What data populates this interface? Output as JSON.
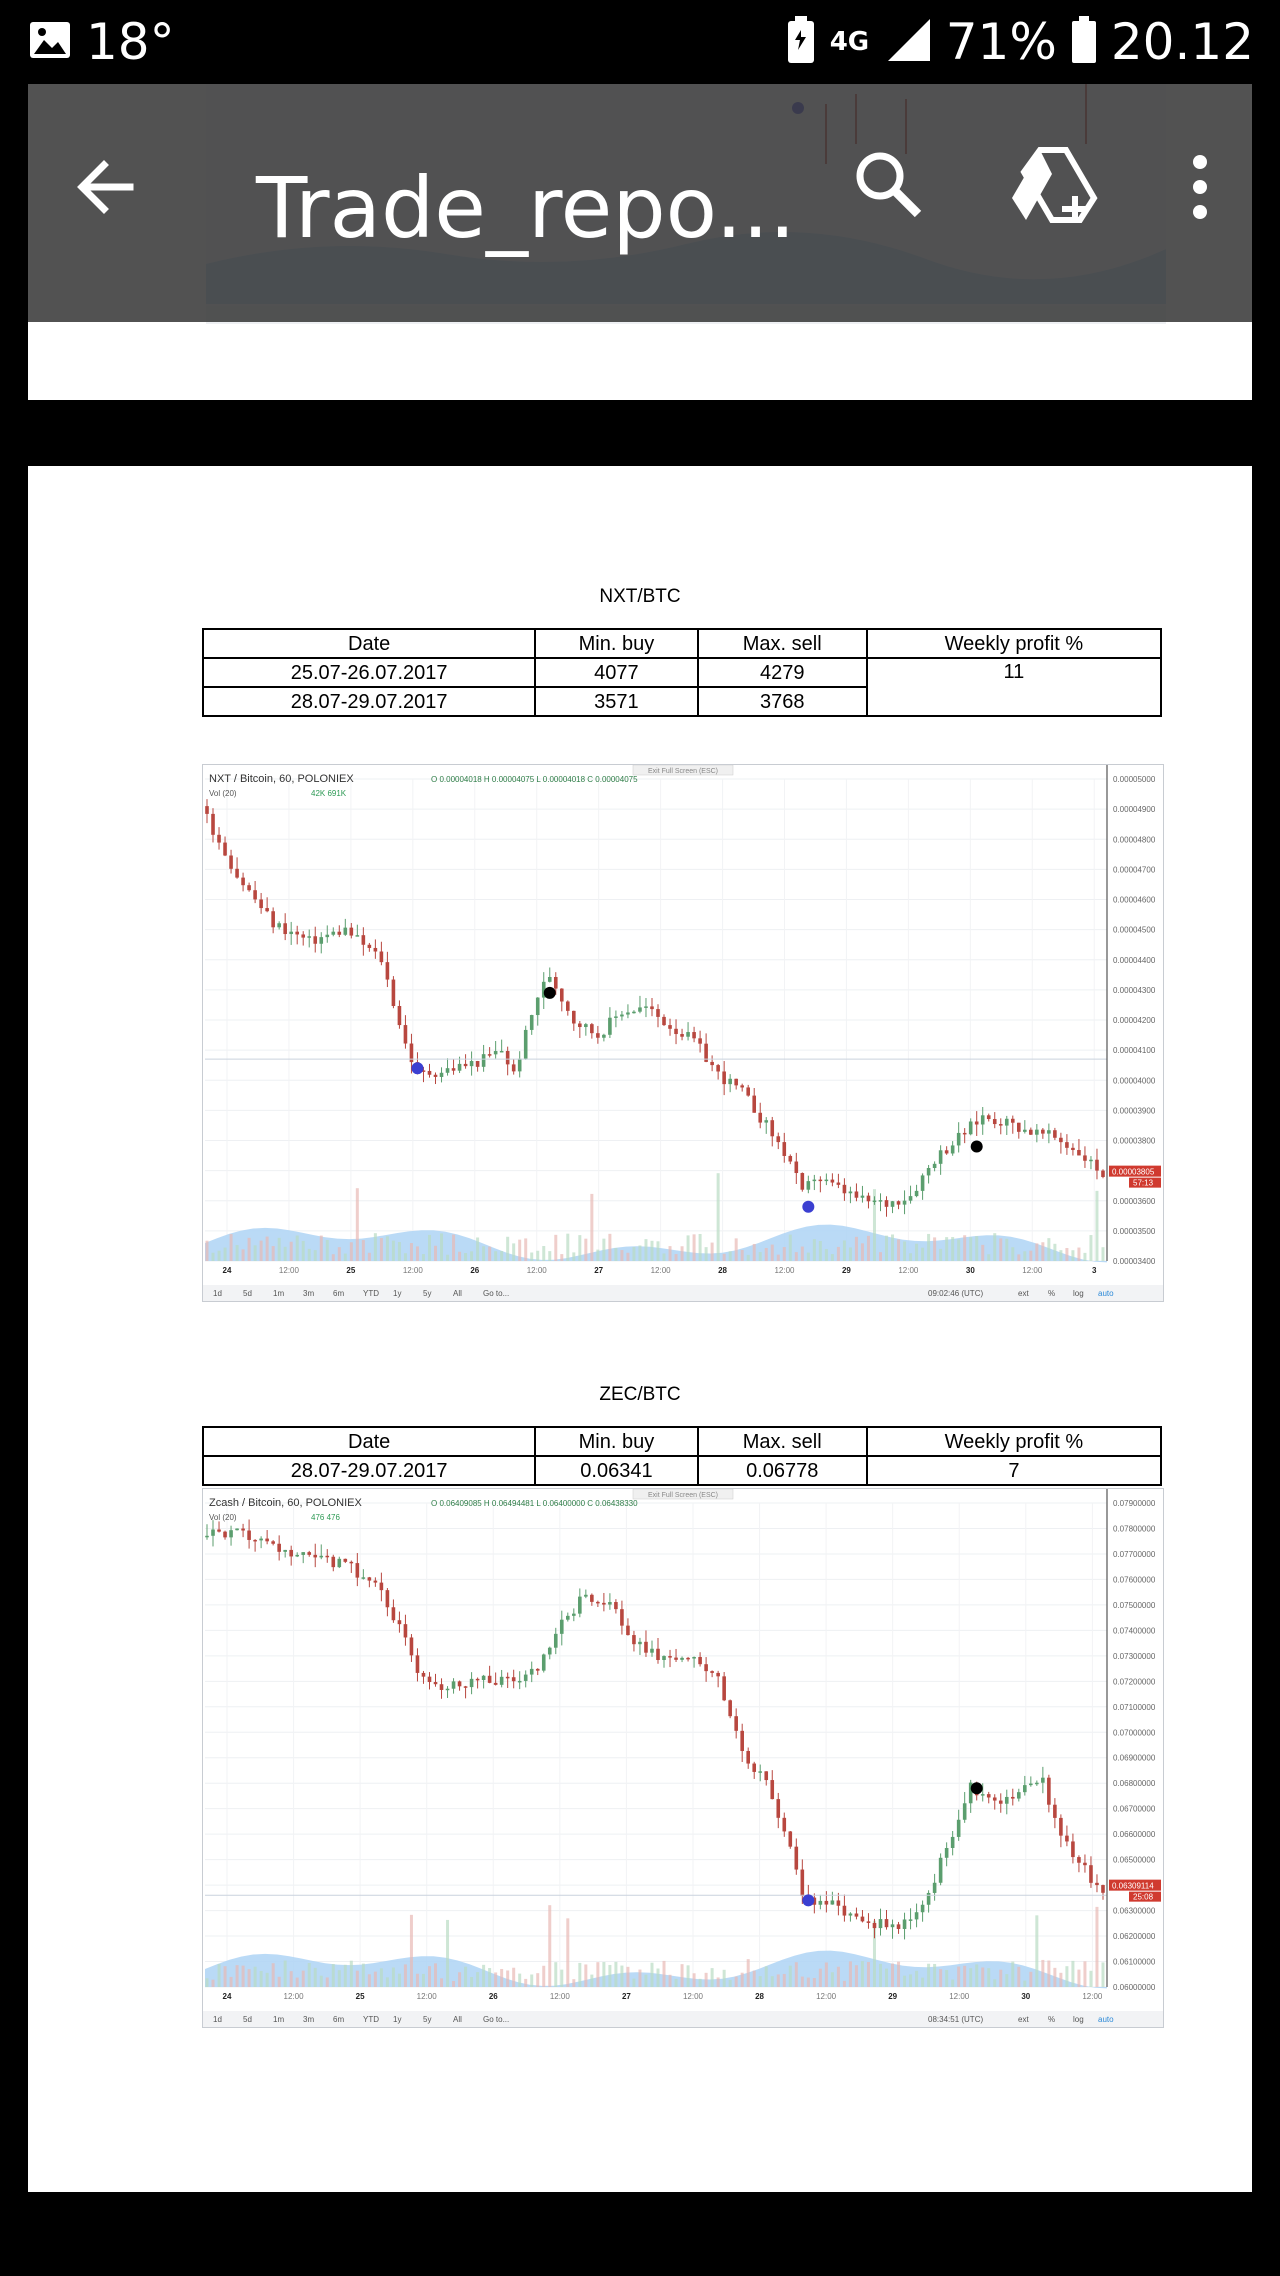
{
  "status_bar": {
    "temperature": "18°",
    "network": "4G",
    "battery_percent": "71%",
    "time": "20.12",
    "icons": [
      "image-icon",
      "battery-saver-icon",
      "signal-icon",
      "battery-icon"
    ]
  },
  "toolbar": {
    "title": "Trade_repo...",
    "icons": [
      "back-arrow-icon",
      "search-icon",
      "drive-add-icon",
      "more-vert-icon"
    ]
  },
  "sections": [
    {
      "pair": "NXT/BTC",
      "table": {
        "headers": [
          "Date",
          "Min. buy",
          "Max. sell",
          "Weekly profit %"
        ],
        "rows": [
          [
            "25.07-26.07.2017",
            "4077",
            "4279"
          ],
          [
            "28.07-29.07.2017",
            "3571",
            "3768"
          ]
        ],
        "weekly_profit": "11"
      }
    },
    {
      "pair": "ZEC/BTC",
      "table": {
        "headers": [
          "Date",
          "Min. buy",
          "Max. sell",
          "Weekly profit %"
        ],
        "rows": [
          [
            "28.07-29.07.2017",
            "0.06341",
            "0.06778",
            "7"
          ]
        ]
      }
    }
  ],
  "chart_data": [
    {
      "type": "line",
      "style": "candlestick",
      "title": "NXT / Bitcoin, 60, POLONIEX",
      "ohlc_label": "O 0.00004018 H 0.00004075 L 0.00004018 C 0.00004075",
      "volume_label": "Vol (20)",
      "volume_values": "42K 691K",
      "top_note": "Exit Full Screen (ESC)",
      "x_ticks": [
        "24",
        "12:00",
        "25",
        "12:00",
        "26",
        "12:00",
        "27",
        "12:00",
        "28",
        "12:00",
        "29",
        "12:00",
        "30",
        "12:00",
        "3"
      ],
      "y_ticks": [
        "0.00005000",
        "0.00004900",
        "0.00004800",
        "0.00004700",
        "0.00004600",
        "0.00004500",
        "0.00004400",
        "0.00004300",
        "0.00004200",
        "0.00004100",
        "0.00004000",
        "0.00003900",
        "0.00003800",
        "0.00003700",
        "0.00003600",
        "0.00003500",
        "0.00003400"
      ],
      "ylim": [
        3.4e-05,
        5e-05
      ],
      "y_anchor_points": [
        [
          0,
          4910
        ],
        [
          6,
          4680
        ],
        [
          12,
          4520
        ],
        [
          18,
          4460
        ],
        [
          24,
          4500
        ],
        [
          30,
          4400
        ],
        [
          34,
          4120
        ],
        [
          36,
          4020
        ],
        [
          40,
          4030
        ],
        [
          46,
          4060
        ],
        [
          50,
          4100
        ],
        [
          52,
          4020
        ],
        [
          56,
          4280
        ],
        [
          58,
          4350
        ],
        [
          62,
          4200
        ],
        [
          66,
          4150
        ],
        [
          70,
          4230
        ],
        [
          74,
          4240
        ],
        [
          78,
          4180
        ],
        [
          82,
          4130
        ],
        [
          86,
          4020
        ],
        [
          90,
          3960
        ],
        [
          94,
          3850
        ],
        [
          98,
          3730
        ],
        [
          100,
          3620
        ],
        [
          102,
          3680
        ],
        [
          106,
          3640
        ],
        [
          110,
          3600
        ],
        [
          114,
          3590
        ],
        [
          118,
          3620
        ],
        [
          122,
          3740
        ],
        [
          126,
          3810
        ],
        [
          130,
          3880
        ],
        [
          134,
          3860
        ],
        [
          138,
          3830
        ],
        [
          142,
          3810
        ],
        [
          146,
          3760
        ],
        [
          150,
          3690
        ]
      ],
      "buy_markers": [
        [
          35,
          4040
        ],
        [
          100,
          3580
        ]
      ],
      "sell_markers": [
        [
          57,
          4290
        ],
        [
          128,
          3780
        ]
      ],
      "price_label": "0.00003805",
      "countdown_label": "57:13",
      "bottom_buttons": [
        "1d",
        "5d",
        "1m",
        "3m",
        "6m",
        "YTD",
        "1y",
        "5y",
        "All",
        "Go to..."
      ],
      "bottom_right": [
        "09:02:46 (UTC)",
        "ext",
        "%",
        "log",
        "auto"
      ],
      "series_colors": {
        "up": "#5b9e6e",
        "down": "#b8473f",
        "volume": "#aed3f5",
        "buy": "#3b3fd1",
        "sell": "#000000"
      }
    },
    {
      "type": "line",
      "style": "candlestick",
      "title": "Zcash / Bitcoin, 60, POLONIEX",
      "ohlc_label": "O 0.06409085 H 0.06494481 L 0.06400000 C 0.06438330",
      "volume_label": "Vol (20)",
      "volume_values": "476 476",
      "top_note": "Exit Full Screen (ESC)",
      "x_ticks": [
        "24",
        "12:00",
        "25",
        "12:00",
        "26",
        "12:00",
        "27",
        "12:00",
        "28",
        "12:00",
        "29",
        "12:00",
        "30",
        "12:00"
      ],
      "y_ticks": [
        "0.07900000",
        "0.07800000",
        "0.07700000",
        "0.07600000",
        "0.07500000",
        "0.07400000",
        "0.07300000",
        "0.07200000",
        "0.07100000",
        "0.07000000",
        "0.06900000",
        "0.06800000",
        "0.06700000",
        "0.06600000",
        "0.06500000",
        "0.06400000",
        "0.06300000",
        "0.06200000",
        "0.06100000",
        "0.06000000"
      ],
      "ylim": [
        0.06,
        0.079
      ],
      "y_anchor_points": [
        [
          0,
          7770
        ],
        [
          6,
          7780
        ],
        [
          12,
          7720
        ],
        [
          18,
          7680
        ],
        [
          24,
          7660
        ],
        [
          30,
          7560
        ],
        [
          36,
          7250
        ],
        [
          40,
          7180
        ],
        [
          46,
          7210
        ],
        [
          52,
          7200
        ],
        [
          56,
          7240
        ],
        [
          60,
          7420
        ],
        [
          64,
          7540
        ],
        [
          68,
          7500
        ],
        [
          72,
          7350
        ],
        [
          76,
          7300
        ],
        [
          82,
          7280
        ],
        [
          86,
          7200
        ],
        [
          90,
          6930
        ],
        [
          94,
          6790
        ],
        [
          98,
          6560
        ],
        [
          100,
          6360
        ],
        [
          104,
          6330
        ],
        [
          108,
          6280
        ],
        [
          112,
          6250
        ],
        [
          116,
          6240
        ],
        [
          120,
          6310
        ],
        [
          124,
          6550
        ],
        [
          128,
          6790
        ],
        [
          132,
          6730
        ],
        [
          136,
          6770
        ],
        [
          140,
          6800
        ],
        [
          144,
          6550
        ],
        [
          148,
          6430
        ],
        [
          150,
          6390
        ]
      ],
      "buy_markers": [
        [
          100,
          6340
        ]
      ],
      "sell_markers": [
        [
          128,
          6780
        ]
      ],
      "price_label": "0.06309114",
      "countdown_label": "25:08",
      "bottom_buttons": [
        "1d",
        "5d",
        "1m",
        "3m",
        "6m",
        "YTD",
        "1y",
        "5y",
        "All",
        "Go to..."
      ],
      "bottom_right": [
        "08:34:51 (UTC)",
        "ext",
        "%",
        "log",
        "auto"
      ],
      "series_colors": {
        "up": "#5b9e6e",
        "down": "#b8473f",
        "volume": "#aed3f5",
        "buy": "#3b3fd1",
        "sell": "#000000"
      }
    }
  ]
}
